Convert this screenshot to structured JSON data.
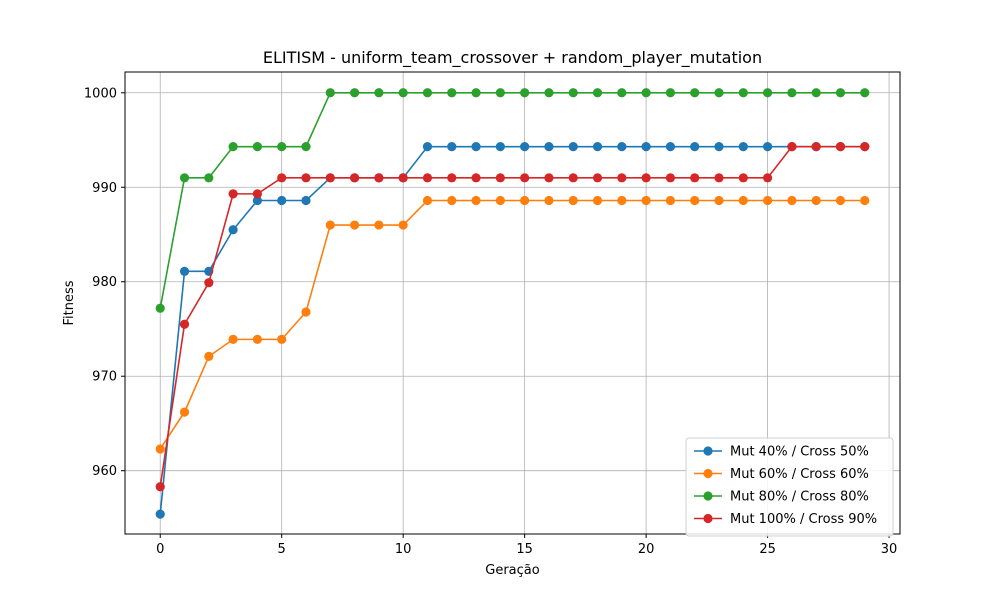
{
  "chart_data": {
    "type": "line",
    "title": "ELITISM - uniform_team_crossover + random_player_mutation",
    "xlabel": "Geração",
    "ylabel": "Fitness",
    "xlim": [
      -1.45,
      30.45
    ],
    "ylim": [
      953.3,
      1002.2
    ],
    "xticks": [
      0,
      5,
      10,
      15,
      20,
      25,
      30
    ],
    "yticks": [
      960,
      970,
      980,
      990,
      1000
    ],
    "grid": true,
    "legend_position": "lower-right",
    "x": [
      0,
      1,
      2,
      3,
      4,
      5,
      6,
      7,
      8,
      9,
      10,
      11,
      12,
      13,
      14,
      15,
      16,
      17,
      18,
      19,
      20,
      21,
      22,
      23,
      24,
      25,
      26,
      27,
      28,
      29
    ],
    "series": [
      {
        "name": "Mut 40% / Cross 50%",
        "color": "#1f77b4",
        "values": [
          955.4,
          981.1,
          981.1,
          985.5,
          988.6,
          988.6,
          988.6,
          991.0,
          991.0,
          991.0,
          991.0,
          994.3,
          994.3,
          994.3,
          994.3,
          994.3,
          994.3,
          994.3,
          994.3,
          994.3,
          994.3,
          994.3,
          994.3,
          994.3,
          994.3,
          994.3,
          994.3,
          994.3,
          994.3,
          994.3
        ]
      },
      {
        "name": "Mut 60% / Cross 60%",
        "color": "#ff7f0e",
        "values": [
          962.3,
          966.2,
          972.1,
          973.9,
          973.9,
          973.9,
          976.8,
          986.0,
          986.0,
          986.0,
          986.0,
          988.6,
          988.6,
          988.6,
          988.6,
          988.6,
          988.6,
          988.6,
          988.6,
          988.6,
          988.6,
          988.6,
          988.6,
          988.6,
          988.6,
          988.6,
          988.6,
          988.6,
          988.6,
          988.6
        ]
      },
      {
        "name": "Mut 80% / Cross 80%",
        "color": "#2ca02c",
        "values": [
          977.2,
          991.0,
          991.0,
          994.3,
          994.3,
          994.3,
          994.3,
          1000,
          1000,
          1000,
          1000,
          1000,
          1000,
          1000,
          1000,
          1000,
          1000,
          1000,
          1000,
          1000,
          1000,
          1000,
          1000,
          1000,
          1000,
          1000,
          1000,
          1000,
          1000,
          1000
        ]
      },
      {
        "name": "Mut 100% / Cross 90%",
        "color": "#d62728",
        "values": [
          958.3,
          975.5,
          979.9,
          989.3,
          989.3,
          991.0,
          991.0,
          991.0,
          991.0,
          991.0,
          991.0,
          991.0,
          991.0,
          991.0,
          991.0,
          991.0,
          991.0,
          991.0,
          991.0,
          991.0,
          991.0,
          991.0,
          991.0,
          991.0,
          991.0,
          991.0,
          994.3,
          994.3,
          994.3,
          994.3
        ]
      }
    ]
  }
}
